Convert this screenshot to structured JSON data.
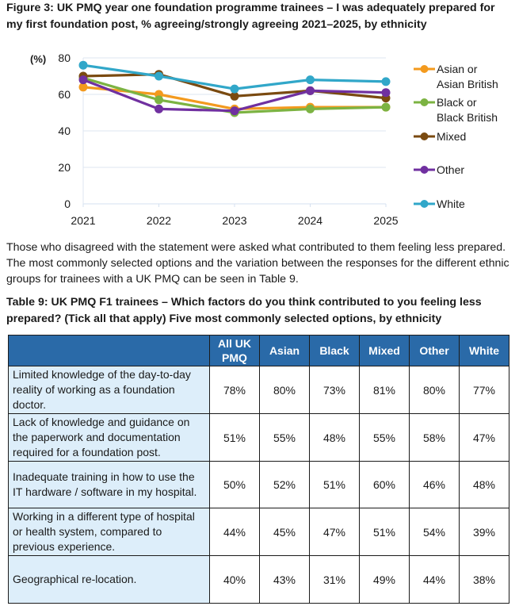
{
  "figure": {
    "title": "Figure 3: UK PMQ year one foundation programme trainees – I was adequately prepared for my first foundation post, % agreeing/strongly agreeing 2021–2025, by ethnicity"
  },
  "chart_data": {
    "type": "line",
    "title": "Figure 3: UK PMQ year one foundation programme trainees – I was adequately prepared for my first foundation post, % agreeing/strongly agreeing 2021–2025, by ethnicity",
    "ylabel": "(%)",
    "xlabel": "",
    "x": [
      "2021",
      "2022",
      "2023",
      "2024",
      "2025"
    ],
    "ylim": [
      0,
      80
    ],
    "yticks": [
      0,
      20,
      40,
      60,
      80
    ],
    "grid": true,
    "legend_position": "right",
    "series": [
      {
        "name": "Asian or Asian British",
        "legend_lines": [
          "Asian or",
          "Asian British"
        ],
        "color": "#f39a1e",
        "values": [
          64,
          60,
          52,
          53,
          53
        ]
      },
      {
        "name": "Black or Black British",
        "legend_lines": [
          "Black or",
          "Black British"
        ],
        "color": "#7cb342",
        "values": [
          69,
          57,
          50,
          52,
          53
        ]
      },
      {
        "name": "Mixed",
        "legend_lines": [
          "Mixed"
        ],
        "color": "#7a4a10",
        "values": [
          70,
          71,
          59,
          62,
          58
        ]
      },
      {
        "name": "Other",
        "legend_lines": [
          "Other"
        ],
        "color": "#7030a0",
        "values": [
          68,
          52,
          51,
          62,
          61
        ]
      },
      {
        "name": "White",
        "legend_lines": [
          "White"
        ],
        "color": "#31a7c9",
        "values": [
          76,
          70,
          63,
          68,
          67
        ]
      }
    ]
  },
  "paragraph": "Those who disagreed with the statement were asked what contributed to them feeling less prepared. The most commonly selected options and the variation between the responses for the different ethnic groups for trainees with a UK PMQ can be seen in Table 9.",
  "table": {
    "title": "Table 9: UK PMQ F1 trainees  – Which factors do you think contributed to you feeling less prepared? (Tick all that apply) Five most commonly selected options, by ethnicity",
    "header_color": "#2a6aa8",
    "factor_color": "#ddeefa",
    "columns": [
      "",
      "All UK PMQ",
      "Asian",
      "Black",
      "Mixed",
      "Other",
      "White"
    ],
    "rows": [
      {
        "factor": "Limited knowledge of the day-to-day reality of working as a foundation doctor.",
        "values": [
          "78%",
          "80%",
          "73%",
          "81%",
          "80%",
          "77%"
        ]
      },
      {
        "factor": "Lack of knowledge and guidance on the paperwork and documentation required for a foundation post.",
        "values": [
          "51%",
          "55%",
          "48%",
          "55%",
          "58%",
          "47%"
        ]
      },
      {
        "factor": "Inadequate training in how to use the IT hardware / software in my hospital.",
        "values": [
          "50%",
          "52%",
          "51%",
          "60%",
          "46%",
          "48%"
        ]
      },
      {
        "factor": "Working in a different type of hospital or health system, compared to previous experience.",
        "values": [
          "44%",
          "45%",
          "47%",
          "51%",
          "54%",
          "39%"
        ]
      },
      {
        "factor": "Geographical re-location.",
        "values": [
          "40%",
          "43%",
          "31%",
          "49%",
          "44%",
          "38%"
        ]
      }
    ]
  }
}
